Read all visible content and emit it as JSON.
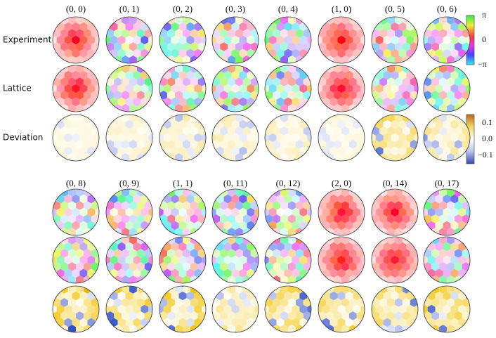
{
  "columns_top": [
    "(0, 0)",
    "(0, 1)",
    "(0, 2)",
    "(0, 3)",
    "(0, 4)",
    "(1, 0)",
    "(0, 5)",
    "(0, 6)"
  ],
  "columns_bottom": [
    "(0, 8)",
    "(0, 9)",
    "(1, 1)",
    "(0, 11)",
    "(0, 12)",
    "(2, 0)",
    "(0, 14)",
    "(0, 17)"
  ],
  "row_labels": [
    "Experiment",
    "Lattice",
    "Deviation"
  ],
  "phase_colorbar": {
    "ticks": [
      "π",
      "0",
      "−π"
    ]
  },
  "deviation_colorbar": {
    "ticks": [
      "0.1",
      "0.0",
      "−0.1"
    ]
  }
}
